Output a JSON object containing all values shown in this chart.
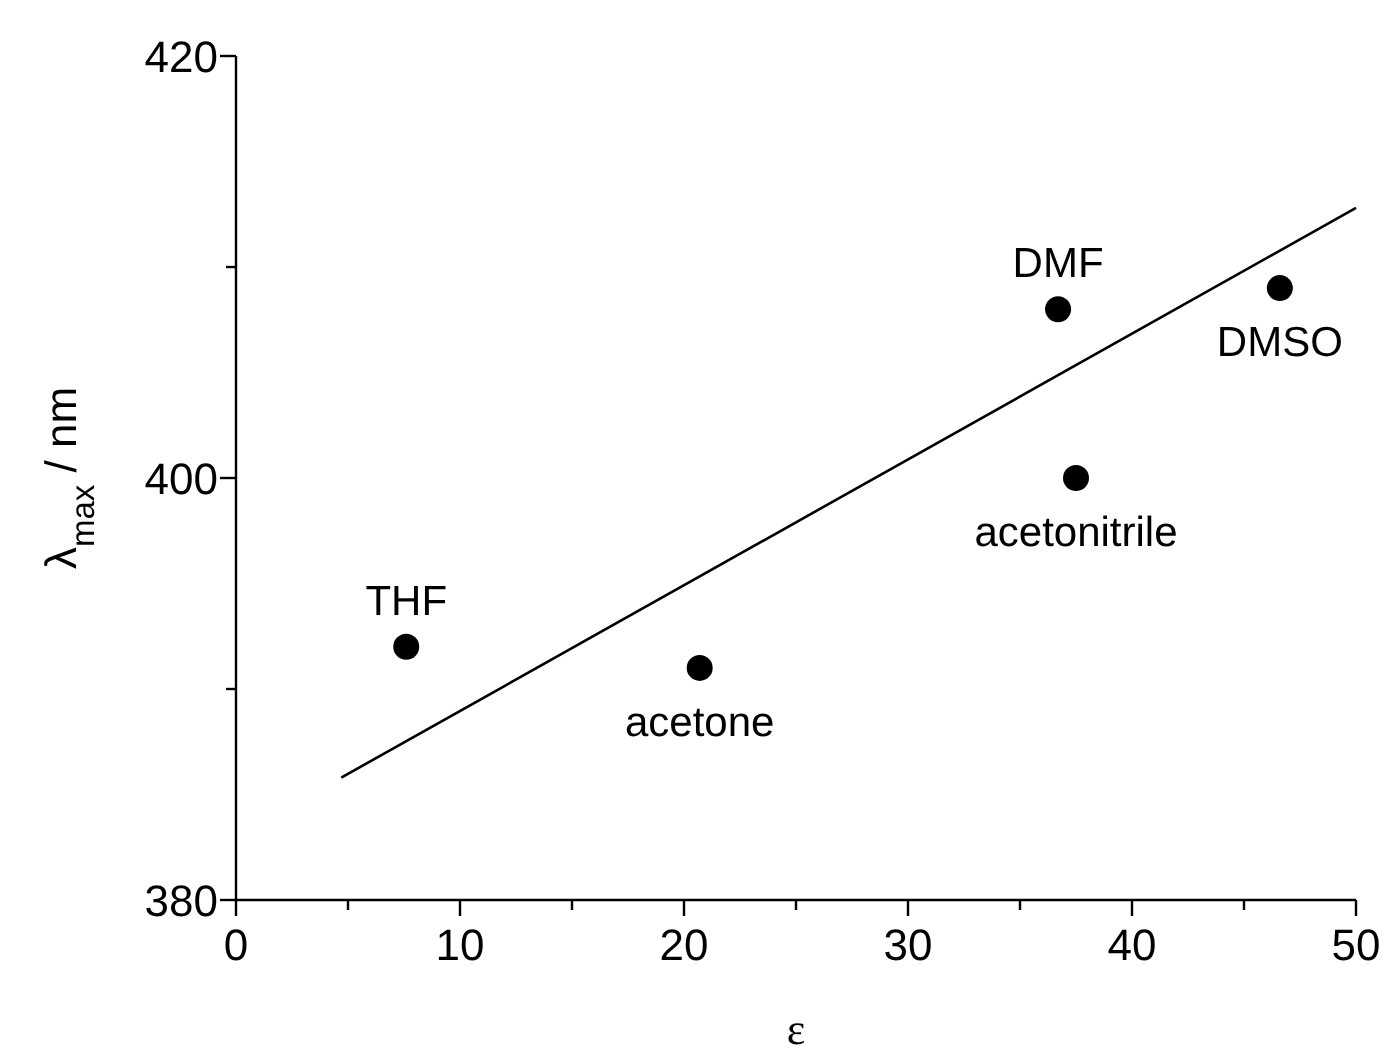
{
  "chart_data": {
    "type": "scatter",
    "xlabel": "ε",
    "ylabel": "λ$_{max}$ / nm",
    "xlim": [
      0,
      50
    ],
    "ylim": [
      380,
      420
    ],
    "xticks": [
      0,
      {
        "value": 5,
        "label": null
      },
      10,
      {
        "value": 15,
        "label": null
      },
      20,
      {
        "value": 25,
        "label": null
      },
      30,
      {
        "value": 35,
        "label": null
      },
      40,
      {
        "value": 45,
        "label": null
      },
      50
    ],
    "yticks": [
      380,
      {
        "value": 390,
        "label": null
      },
      400,
      {
        "value": 410,
        "label": null
      },
      420
    ],
    "marker": "circle",
    "grid": false,
    "series": [
      {
        "color": "#000000",
        "x": [
          7.6,
          20.7,
          36.7,
          37.5,
          46.6
        ],
        "values": [
          392,
          391,
          408,
          400,
          409
        ]
      },
      {
        "type": "line",
        "color": "#000000",
        "x": [
          4.7,
          50
        ],
        "values": [
          385.8,
          412.8
        ],
        "marker": "none"
      }
    ],
    "annotations": [
      {
        "text": "THF",
        "x": 7.6,
        "y": 392
      },
      {
        "text": "acetone",
        "x": 20.7,
        "y": 391
      },
      {
        "text": "DMF",
        "x": 36.7,
        "y": 408
      },
      {
        "text": "acetonitrile",
        "x": 37.5,
        "y": 400
      },
      {
        "text": "DMSO",
        "x": 46.6,
        "y": 409
      }
    ]
  }
}
